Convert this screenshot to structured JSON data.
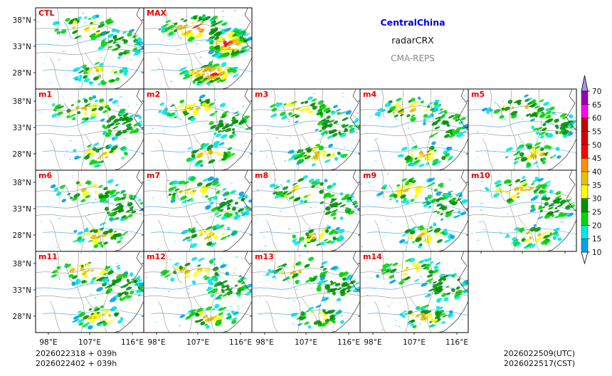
{
  "header": {
    "region": "CentralChina",
    "variable": "radarCRX",
    "system": "CMA-REPS",
    "region_color": "#0000ee",
    "system_color": "#888888"
  },
  "footer": {
    "init_line_1": "2026022318  +  039h",
    "init_line_2": "2026022402  +  039h",
    "valid_utc": "2026022509(UTC)",
    "valid_cst": "2026022517(CST)"
  },
  "chart_data": {
    "type": "heatmap",
    "title": "CentralChina radarCRX CMA-REPS",
    "panel_label_color": "#ee0000",
    "panels": [
      "CTL",
      "MAX",
      "m1",
      "m2",
      "m3",
      "m4",
      "m5",
      "m6",
      "m7",
      "m8",
      "m9",
      "m10",
      "m11",
      "m12",
      "m13",
      "m14"
    ],
    "x_ticks": [
      "98°E",
      "107°E",
      "116°E"
    ],
    "y_ticks": [
      "38°N",
      "33°N",
      "28°N"
    ],
    "colorbar": {
      "levels": [
        10,
        15,
        20,
        25,
        30,
        35,
        40,
        45,
        50,
        55,
        60,
        65,
        70
      ],
      "tick_labels": [
        "10",
        "15",
        "20",
        "25",
        "30",
        "35",
        "40",
        "45",
        "50",
        "55",
        "60",
        "65",
        "70"
      ],
      "colors": [
        "#00a0f0",
        "#00e8e8",
        "#00d800",
        "#009000",
        "#ffff00",
        "#e7c000",
        "#ff9000",
        "#ff0000",
        "#d60000",
        "#c00000",
        "#ff00f0",
        "#9600b4",
        "#ad90f0"
      ],
      "extend": "both"
    }
  }
}
